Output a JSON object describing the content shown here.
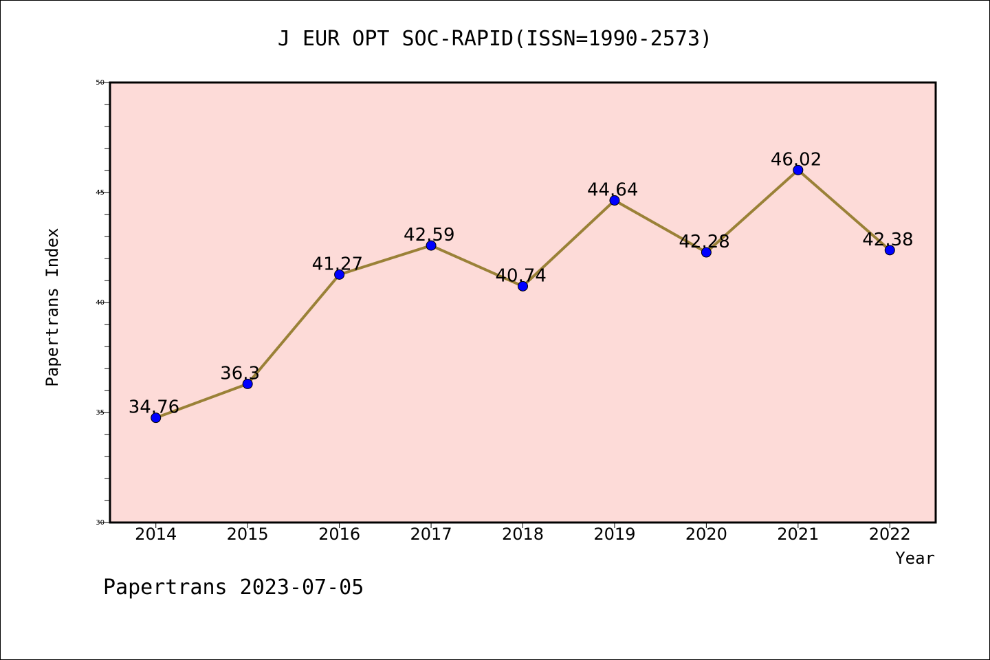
{
  "chart_data": {
    "type": "line",
    "title": "J EUR OPT SOC-RAPID(ISSN=1990-2573)",
    "xlabel": "Year",
    "ylabel": "Papertrans Index",
    "categories": [
      "2014",
      "2015",
      "2016",
      "2017",
      "2018",
      "2019",
      "2020",
      "2021",
      "2022"
    ],
    "values": [
      34.76,
      36.3,
      41.27,
      42.59,
      40.74,
      44.64,
      42.28,
      46.02,
      42.38
    ],
    "value_labels": [
      "34.76",
      "36.3",
      "41.27",
      "42.59",
      "40.74",
      "44.64",
      "42.28",
      "46.02",
      "42.38"
    ],
    "ylim": [
      30,
      50
    ],
    "yticks": [
      30,
      35,
      40,
      45,
      50
    ],
    "grid": false,
    "legend": "none",
    "colors": {
      "plot_background": "#fddbd8",
      "line": "#9a8137",
      "marker": "#0000ff"
    }
  },
  "footer": {
    "text": "Papertrans 2023-07-05"
  }
}
